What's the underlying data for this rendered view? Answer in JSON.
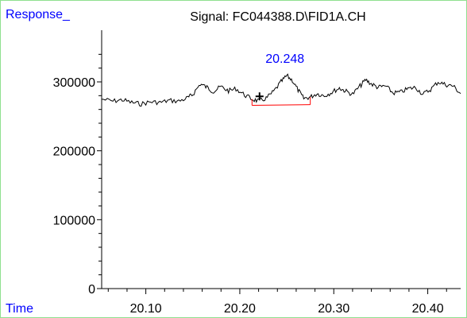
{
  "chart_data": {
    "type": "line",
    "title": "Signal: FC044388.D\\FID1A.CH",
    "ylabel": "Response_",
    "xlabel": "Time",
    "xlim": [
      20.053,
      20.435
    ],
    "ylim": [
      0,
      375000
    ],
    "x_ticks": [
      20.1,
      20.2,
      20.3,
      20.4
    ],
    "x_tick_labels": [
      "20.10",
      "20.20",
      "20.30",
      "20.40"
    ],
    "y_ticks": [
      0,
      100000,
      200000,
      300000
    ],
    "y_tick_labels": [
      "0",
      "100000",
      "200000",
      "300000"
    ],
    "grid": false,
    "series": [
      {
        "color": "#000000",
        "x": [
          20.053,
          20.065,
          20.075,
          20.085,
          20.095,
          20.105,
          20.115,
          20.125,
          20.135,
          20.145,
          20.15,
          20.158,
          20.165,
          20.172,
          20.18,
          20.188,
          20.196,
          20.205,
          20.213,
          20.22,
          20.228,
          20.236,
          20.244,
          20.25,
          20.256,
          20.262,
          20.268,
          20.275,
          20.282,
          20.29,
          20.298,
          20.306,
          20.312,
          20.32,
          20.328,
          20.334,
          20.34,
          20.347,
          20.355,
          20.363,
          20.371,
          20.379,
          20.387,
          20.395,
          20.403,
          20.411,
          20.419,
          20.427,
          20.435
        ],
        "values": [
          275000,
          272000,
          274000,
          270000,
          268000,
          271000,
          270000,
          273000,
          272000,
          277000,
          282000,
          297000,
          292000,
          286000,
          293000,
          287000,
          290000,
          281000,
          275000,
          272000,
          276000,
          286000,
          300000,
          309000,
          302000,
          288000,
          276000,
          278000,
          283000,
          280000,
          285000,
          291000,
          287000,
          282000,
          294000,
          303000,
          297000,
          292000,
          294000,
          284000,
          285000,
          290000,
          292000,
          282000,
          289000,
          300000,
          296000,
          294000,
          283000
        ]
      }
    ],
    "peak": {
      "label": "20.248",
      "apex_x": 20.248,
      "start_x": 20.213,
      "end_x": 20.275,
      "baseline_start_y": 266000,
      "baseline_end_y": 267000,
      "baseline_color": "#ff0000",
      "marker_x": 20.221,
      "marker_y": 279000
    }
  }
}
